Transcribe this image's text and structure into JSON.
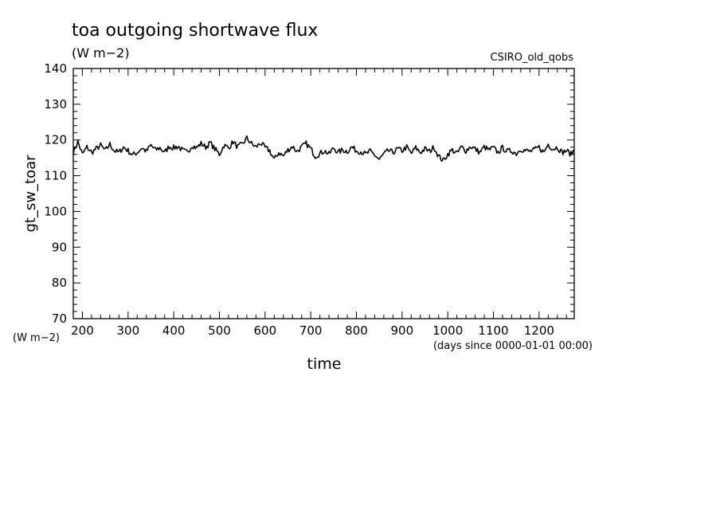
{
  "chart_data": {
    "type": "line",
    "title": "toa outgoing shortwave flux",
    "subtitle": "(W m−2)",
    "dataset_label": "CSIRO_old_qobs",
    "xlabel": "time",
    "x_units": "(days since 0000-01-01 00:00)",
    "ylabel": "gt_sw_toar",
    "y_units": "(W m−2)",
    "xlim": [
      180,
      1277
    ],
    "ylim": [
      70,
      140
    ],
    "x_ticks": [
      200,
      300,
      400,
      500,
      600,
      700,
      800,
      900,
      1000,
      1100,
      1200
    ],
    "y_ticks": [
      70,
      80,
      90,
      100,
      110,
      120,
      130,
      140
    ],
    "grid": false,
    "series": [
      {
        "x": [
          180,
          190,
          200,
          210,
          220,
          230,
          240,
          250,
          260,
          270,
          280,
          290,
          300,
          310,
          320,
          330,
          340,
          350,
          360,
          370,
          380,
          390,
          400,
          410,
          420,
          430,
          440,
          450,
          460,
          470,
          480,
          490,
          500,
          510,
          520,
          530,
          540,
          550,
          560,
          570,
          580,
          590,
          600,
          610,
          620,
          630,
          640,
          650,
          660,
          670,
          680,
          690,
          700,
          710,
          720,
          730,
          740,
          750,
          760,
          770,
          780,
          790,
          800,
          810,
          820,
          830,
          840,
          850,
          860,
          870,
          880,
          890,
          900,
          910,
          920,
          930,
          940,
          950,
          960,
          970,
          980,
          990,
          1000,
          1010,
          1020,
          1030,
          1040,
          1050,
          1060,
          1070,
          1080,
          1090,
          1100,
          1110,
          1120,
          1130,
          1140,
          1150,
          1160,
          1170,
          1180,
          1190,
          1200,
          1210,
          1220,
          1230,
          1240,
          1250,
          1260,
          1270,
          1277
        ],
        "y": [
          116.5,
          119.5,
          116.0,
          118.0,
          116.5,
          117.5,
          118.5,
          117.0,
          118.8,
          117.0,
          116.5,
          118.0,
          117.0,
          115.8,
          116.5,
          117.8,
          116.8,
          118.5,
          117.2,
          117.8,
          116.5,
          118.2,
          117.8,
          118.2,
          117.0,
          116.5,
          118.5,
          117.8,
          119.0,
          118.0,
          119.2,
          117.5,
          116.0,
          118.5,
          117.8,
          119.5,
          118.0,
          118.8,
          120.5,
          119.0,
          118.0,
          119.2,
          117.8,
          117.0,
          114.5,
          116.5,
          115.5,
          117.2,
          118.2,
          116.8,
          118.0,
          119.0,
          117.5,
          115.5,
          116.2,
          117.0,
          116.0,
          117.8,
          116.5,
          117.2,
          116.8,
          118.0,
          117.0,
          116.8,
          116.0,
          116.8,
          115.8,
          114.5,
          116.0,
          117.0,
          116.5,
          117.5,
          117.0,
          118.0,
          116.2,
          117.8,
          116.5,
          117.5,
          116.8,
          118.0,
          115.5,
          114.2,
          116.0,
          117.2,
          116.2,
          118.0,
          117.0,
          118.2,
          117.5,
          116.5,
          118.0,
          117.2,
          117.8,
          116.5,
          117.8,
          116.8,
          117.0,
          116.2,
          117.5,
          117.0,
          116.8,
          117.2,
          118.0,
          116.5,
          118.8,
          117.5,
          118.0,
          116.5,
          117.0,
          116.0,
          117.2
        ]
      }
    ]
  }
}
